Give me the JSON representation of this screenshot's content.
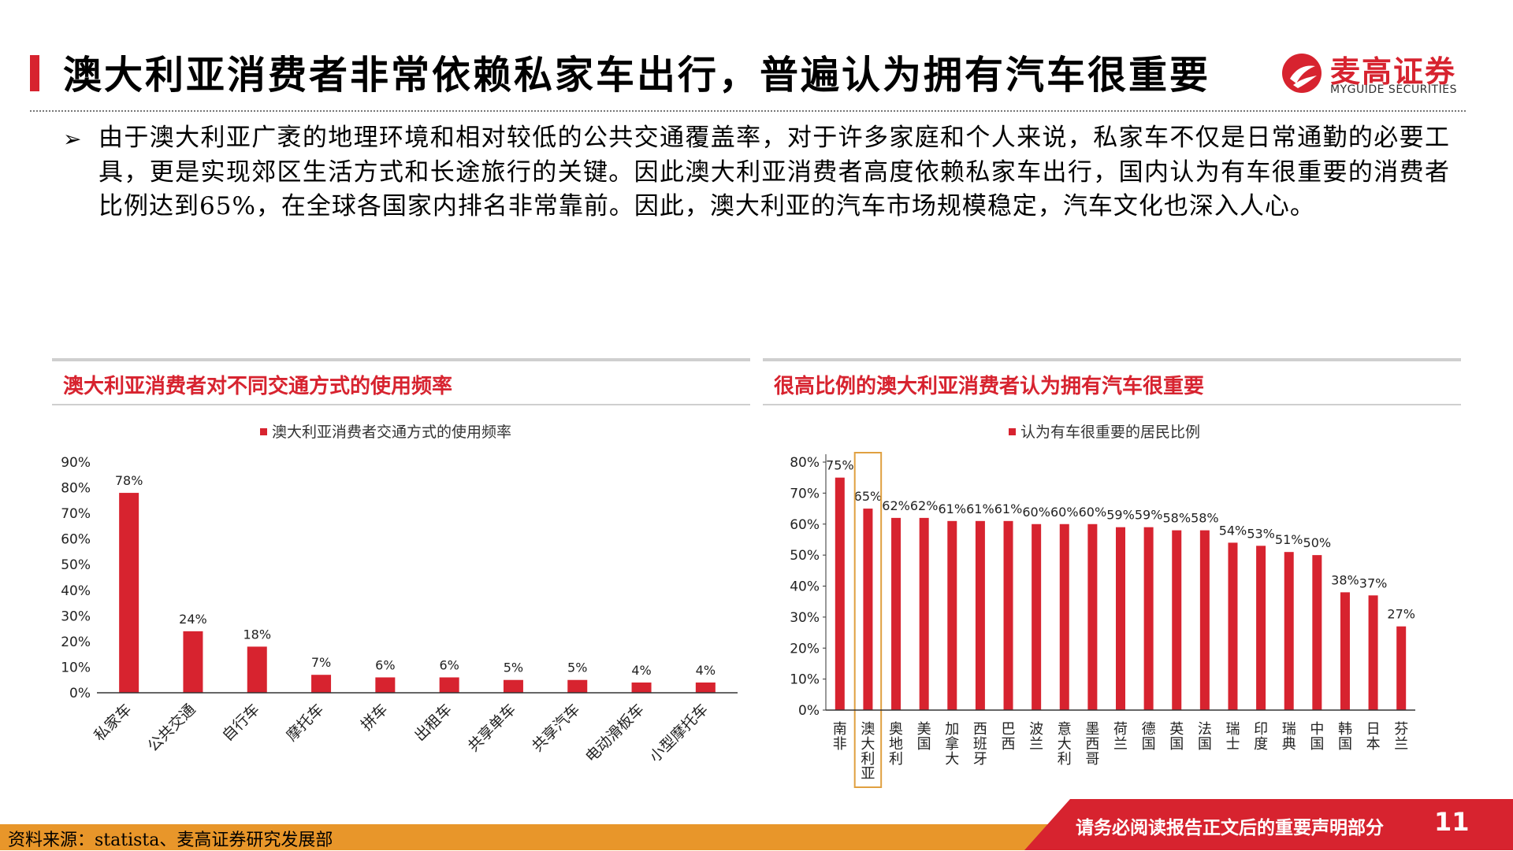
{
  "header": {
    "title": "澳大利亚消费者非常依赖私家车出行，普遍认为拥有汽车很重要",
    "logo_cn": "麦高证券",
    "logo_en": "MYGUIDE SECURITIES"
  },
  "body": {
    "bullet": "➢",
    "text": "由于澳大利亚广袤的地理环境和相对较低的公共交通覆盖率，对于许多家庭和个人来说，私家车不仅是日常通勤的必要工具，更是实现郊区生活方式和长途旅行的关键。因此澳大利亚消费者高度依赖私家车出行，国内认为有车很重要的消费者比例达到65%，在全球各国家内排名非常靠前。因此，澳大利亚的汽车市场规模稳定，汽车文化也深入人心。"
  },
  "left_panel": {
    "title": "澳大利亚消费者对不同交通方式的使用频率"
  },
  "right_panel": {
    "title": "很高比例的澳大利亚消费者认为拥有汽车很重要"
  },
  "footer": {
    "source": "资料来源：statista、麦高证券研究发展部",
    "note": "请务必阅读报告正文后的重要声明部分",
    "page": "11"
  },
  "colors": {
    "accent": "#d7232f",
    "bar": "#d7232f",
    "footer_orange": "#e8962a",
    "highlight_box": "#e0a040"
  },
  "chart_data": [
    {
      "type": "bar",
      "legend": "澳大利亚消费者交通方式的使用频率",
      "categories": [
        "私家车",
        "公共交通",
        "自行车",
        "摩托车",
        "拼车",
        "出租车",
        "共享单车",
        "共享汽车",
        "电动滑板车",
        "小型摩托车"
      ],
      "values": [
        78,
        24,
        18,
        7,
        6,
        6,
        5,
        5,
        4,
        4
      ],
      "labels": [
        "78%",
        "24%",
        "18%",
        "7%",
        "6%",
        "6%",
        "5%",
        "5%",
        "4%",
        "4%"
      ],
      "yticks": [
        "0%",
        "10%",
        "20%",
        "30%",
        "40%",
        "50%",
        "60%",
        "70%",
        "80%",
        "90%"
      ],
      "ylim": [
        0,
        90
      ],
      "legend_position": "top-center",
      "grid": false
    },
    {
      "type": "bar",
      "legend": "认为有车很重要的居民比例",
      "categories": [
        "南非",
        "澳大利亚",
        "奥地利",
        "美国",
        "加拿大",
        "西班牙",
        "巴西",
        "波兰",
        "意大利",
        "墨西哥",
        "荷兰",
        "德国",
        "英国",
        "法国",
        "瑞士",
        "印度",
        "瑞典",
        "中国",
        "韩国",
        "日本",
        "芬兰"
      ],
      "values": [
        75,
        65,
        62,
        62,
        61,
        61,
        61,
        60,
        60,
        60,
        59,
        59,
        58,
        58,
        54,
        53,
        51,
        50,
        38,
        37,
        27
      ],
      "labels": [
        "75%",
        "65%",
        "62%",
        "62%",
        "61%",
        "61%",
        "61%",
        "60%",
        "60%",
        "60%",
        "59%",
        "59%",
        "58%",
        "58%",
        "54%",
        "53%",
        "51%",
        "50%",
        "38%",
        "37%",
        "27%"
      ],
      "yticks": [
        "0%",
        "10%",
        "20%",
        "30%",
        "40%",
        "50%",
        "60%",
        "70%",
        "80%"
      ],
      "ylim": [
        0,
        80
      ],
      "highlight": "澳大利亚",
      "legend_position": "top-center",
      "grid": false
    }
  ]
}
